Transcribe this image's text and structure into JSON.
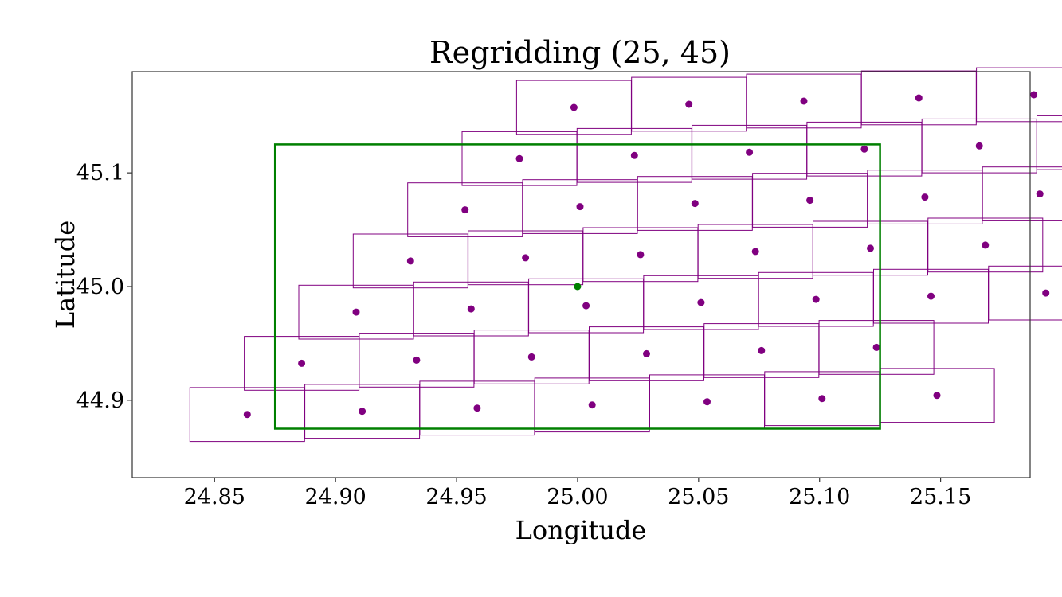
{
  "chart_data": {
    "type": "scatter",
    "title": "Regridding (25, 45)",
    "xlabel": "Longitude",
    "ylabel": "Latitude",
    "xlim": [
      24.816,
      25.187
    ],
    "ylim": [
      44.832,
      45.189
    ],
    "xticks": [
      24.85,
      24.9,
      24.95,
      25.0,
      25.05,
      25.1,
      25.15
    ],
    "xtick_labels": [
      "24.85",
      "24.90",
      "24.95",
      "25.00",
      "25.05",
      "25.10",
      "25.15"
    ],
    "yticks": [
      44.9,
      45.0,
      45.1
    ],
    "ytick_labels": [
      "44.9",
      "45.0",
      "45.1"
    ],
    "grid": false,
    "colors": {
      "cells": "#800080",
      "target": "#008000",
      "frame": "#333333"
    },
    "target_box": {
      "lon": [
        24.875,
        25.125
      ],
      "lat": [
        44.875,
        45.125
      ]
    },
    "center_point": {
      "lon": 25.0,
      "lat": 45.0
    },
    "grid_model": {
      "rows": 7,
      "cols": 7,
      "origin_lon": 24.8635,
      "origin_lat": 44.8875,
      "row_step_lon": 0.0225,
      "row_step_lat": 0.045,
      "col_step_lon": 0.0475,
      "col_step_lat": 0.0028,
      "cell_half_width_lon": 0.0237,
      "cell_half_height_lat": 0.0237,
      "cols_per_row": [
        7,
        6,
        7,
        6,
        7,
        6,
        7
      ]
    }
  }
}
